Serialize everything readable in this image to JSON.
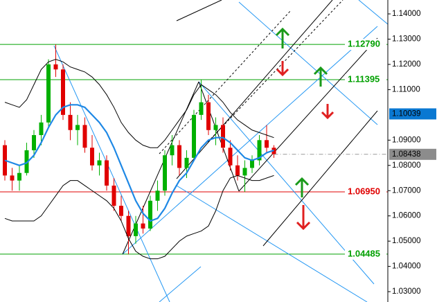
{
  "chart_data": {
    "type": "candlestick",
    "ylim": [
      1.0259,
      1.1455
    ],
    "yticks": [
      {
        "value": 1.14,
        "label": "1.14000"
      },
      {
        "value": 1.13,
        "label": "1.13000"
      },
      {
        "value": 1.12,
        "label": "1.12000"
      },
      {
        "value": 1.11,
        "label": "1.11000"
      },
      {
        "value": 1.09,
        "label": "1.09000"
      },
      {
        "value": 1.08,
        "label": "1.08000"
      },
      {
        "value": 1.07,
        "label": "1.07000"
      },
      {
        "value": 1.06,
        "label": "1.06000"
      },
      {
        "value": 1.05,
        "label": "1.05000"
      },
      {
        "value": 1.04,
        "label": "1.04000"
      },
      {
        "value": 1.03,
        "label": "1.03000"
      }
    ],
    "up_color": "#00b000",
    "down_color": "#e00000",
    "open": [
      1.088,
      1.076,
      1.074,
      1.077,
      1.086,
      1.092,
      1.097,
      1.12,
      1.118,
      1.1,
      1.094,
      1.096,
      1.087,
      1.08,
      1.082,
      1.072,
      1.064,
      1.06,
      1.052,
      1.057,
      1.055,
      1.066,
      1.07,
      1.084,
      1.088,
      1.079,
      1.083,
      1.1,
      1.105,
      1.094,
      1.096,
      1.087,
      1.08,
      1.076,
      1.079,
      1.082,
      1.09,
      1.087
    ],
    "high": [
      1.09,
      1.079,
      1.08,
      1.089,
      1.094,
      1.1,
      1.122,
      1.1279,
      1.12,
      1.105,
      1.1,
      1.099,
      1.092,
      1.085,
      1.084,
      1.075,
      1.068,
      1.062,
      1.06,
      1.064,
      1.068,
      1.074,
      1.086,
      1.092,
      1.09,
      1.086,
      1.102,
      1.1139,
      1.108,
      1.099,
      1.099,
      1.09,
      1.084,
      1.082,
      1.084,
      1.092,
      1.096,
      1.088
    ],
    "low": [
      1.074,
      1.07,
      1.07,
      1.076,
      1.083,
      1.088,
      1.095,
      1.115,
      1.098,
      1.09,
      1.088,
      1.085,
      1.078,
      1.076,
      1.07,
      1.062,
      1.058,
      1.0448,
      1.049,
      1.053,
      1.054,
      1.062,
      1.068,
      1.08,
      1.076,
      1.075,
      1.082,
      1.098,
      1.092,
      1.088,
      1.085,
      1.078,
      1.074,
      1.0695,
      1.077,
      1.08,
      1.085,
      1.083
    ],
    "close": [
      1.076,
      1.074,
      1.077,
      1.086,
      1.092,
      1.097,
      1.12,
      1.118,
      1.1,
      1.094,
      1.096,
      1.087,
      1.08,
      1.082,
      1.072,
      1.064,
      1.06,
      1.052,
      1.057,
      1.055,
      1.066,
      1.07,
      1.084,
      1.088,
      1.079,
      1.083,
      1.1,
      1.105,
      1.094,
      1.096,
      1.087,
      1.08,
      1.076,
      1.079,
      1.082,
      1.09,
      1.087,
      1.0844
    ],
    "series": [
      {
        "color": "#1e88e5",
        "width": 2.2,
        "values": [
          1.082,
          1.081,
          1.08,
          1.081,
          1.084,
          1.089,
          1.095,
          1.1,
          1.103,
          1.104,
          1.104,
          1.103,
          1.1,
          1.097,
          1.093,
          1.087,
          1.08,
          1.073,
          1.066,
          1.061,
          1.058,
          1.059,
          1.063,
          1.069,
          1.074,
          1.077,
          1.082,
          1.087,
          1.09,
          1.091,
          1.091,
          1.089,
          1.086,
          1.083,
          1.082,
          1.083,
          1.085,
          1.086
        ]
      },
      {
        "color": "#000000",
        "width": 1,
        "values": [
          1.105,
          1.104,
          1.103,
          1.106,
          1.112,
          1.118,
          1.121,
          1.122,
          1.121,
          1.119,
          1.118,
          1.117,
          1.115,
          1.112,
          1.108,
          1.103,
          1.097,
          1.093,
          1.09,
          1.088,
          1.087,
          1.087,
          1.09,
          1.094,
          1.098,
          1.102,
          1.108,
          1.112,
          1.11,
          1.108,
          1.105,
          1.101,
          1.098,
          1.096,
          1.094,
          1.093,
          1.092,
          1.091
        ]
      },
      {
        "color": "#000000",
        "width": 1,
        "values": [
          1.059,
          1.058,
          1.058,
          1.058,
          1.058,
          1.06,
          1.064,
          1.068,
          1.072,
          1.074,
          1.074,
          1.072,
          1.07,
          1.068,
          1.066,
          1.063,
          1.058,
          1.051,
          1.046,
          1.044,
          1.043,
          1.043,
          1.044,
          1.047,
          1.05,
          1.052,
          1.053,
          1.054,
          1.056,
          1.062,
          1.07,
          1.075,
          1.076,
          1.075,
          1.074,
          1.074,
          1.075,
          1.076
        ]
      }
    ],
    "levels": [
      {
        "value": 1.1279,
        "label": "1.12790",
        "color": "#00a000"
      },
      {
        "value": 1.11395,
        "label": "1.11395",
        "color": "#00a000"
      },
      {
        "value": 1.0695,
        "label": "1.06950",
        "color": "#e00000"
      },
      {
        "value": 1.04485,
        "label": "1.04485",
        "color": "#00a000"
      }
    ],
    "price_markers": [
      {
        "value": 1.10039,
        "label": "1.10039",
        "color": "#0a78d2"
      },
      {
        "value": 1.08438,
        "label": "1.08438",
        "color": "#8c8c8c"
      }
    ]
  }
}
